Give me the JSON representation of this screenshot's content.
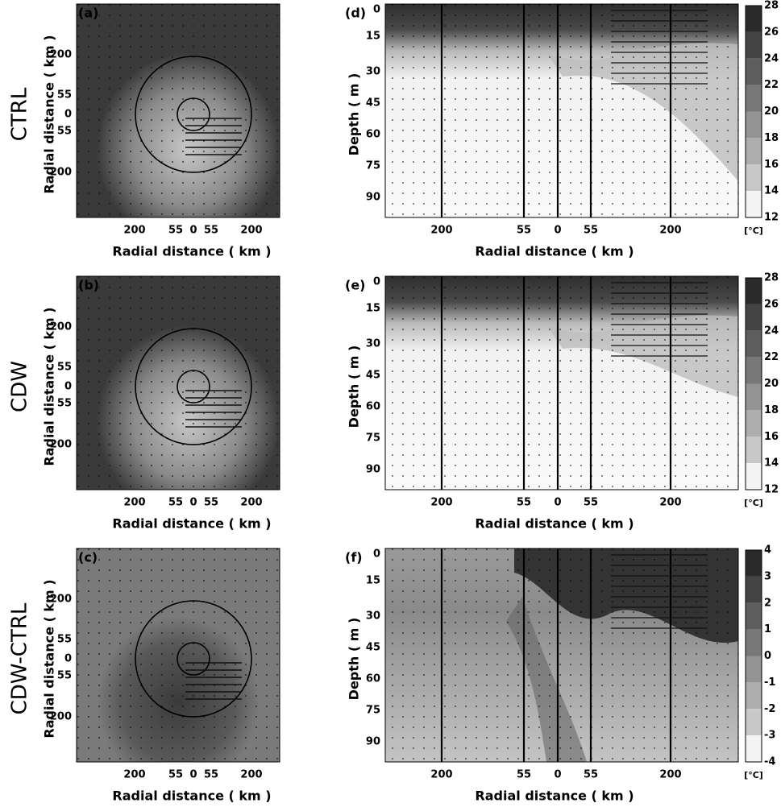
{
  "rows": [
    {
      "title": "CTRL",
      "map": {
        "label": "(a)",
        "ylabel": "Radial distance ( km )",
        "xlabel": "Radial distance ( km )",
        "xticks": [
          200,
          55,
          0,
          55,
          200
        ],
        "yticks": [
          200,
          55,
          0,
          55,
          200
        ]
      },
      "section": {
        "label": "(d)",
        "ylabel": "Depth ( m )",
        "xlabel": "Radial distance ( km )",
        "xticks": [
          200,
          55,
          0,
          55,
          200
        ],
        "yticks": [
          0,
          15,
          30,
          45,
          60,
          75,
          90
        ],
        "colorbar": {
          "ticks": [
            28,
            26,
            24,
            22,
            20,
            18,
            16,
            14,
            12
          ],
          "unit": "[°C]"
        }
      }
    },
    {
      "title": "CDW",
      "map": {
        "label": "(b)",
        "ylabel": "Radial distance ( km )",
        "xlabel": "Radial distance ( km )",
        "xticks": [
          200,
          55,
          0,
          55,
          200
        ],
        "yticks": [
          200,
          55,
          0,
          55,
          200
        ]
      },
      "section": {
        "label": "(e)",
        "ylabel": "Depth ( m )",
        "xlabel": "Radial distance ( km )",
        "xticks": [
          200,
          55,
          0,
          55,
          200
        ],
        "yticks": [
          0,
          15,
          30,
          45,
          60,
          75,
          90
        ],
        "colorbar": {
          "ticks": [
            28,
            26,
            24,
            22,
            20,
            18,
            16,
            14,
            12
          ],
          "unit": "[°C]"
        }
      }
    },
    {
      "title": "CDW-CTRL",
      "map": {
        "label": "(c)",
        "ylabel": "Radial distance ( km )",
        "xlabel": "Radial distance ( km )",
        "xticks": [
          200,
          55,
          0,
          55,
          200
        ],
        "yticks": [
          200,
          55,
          0,
          55,
          200
        ]
      },
      "section": {
        "label": "(f)",
        "ylabel": "Depth ( m )",
        "xlabel": "Radial distance ( km )",
        "xticks": [
          200,
          55,
          0,
          55,
          200
        ],
        "yticks": [
          0,
          15,
          30,
          45,
          60,
          75,
          90
        ],
        "colorbar": {
          "ticks": [
            4,
            3,
            2,
            1,
            0,
            -1,
            -2,
            -3,
            -4
          ],
          "unit": "[°C]"
        }
      }
    }
  ]
}
